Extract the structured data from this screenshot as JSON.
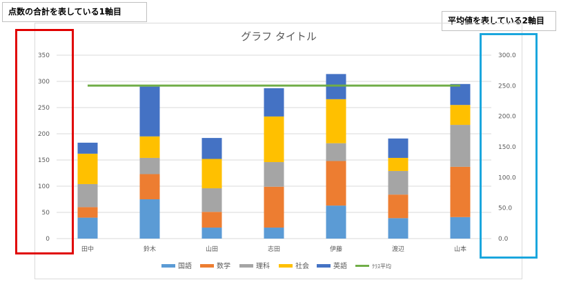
{
  "annotations": {
    "left_note": "点数の合計を表している1軸目",
    "right_note": "平均値を表している2軸目"
  },
  "colors": {
    "国語": "#5b9bd5",
    "数学": "#ed7d31",
    "理科": "#a5a5a5",
    "社会": "#ffc000",
    "英語": "#4472c4",
    "クラス平均": "#70ad47",
    "left_highlight": "#e00000",
    "right_highlight": "#1aa6dd"
  },
  "chart_data": {
    "type": "bar",
    "stacked": true,
    "title": "グラフ タイトル",
    "categories": [
      "田中",
      "鈴木",
      "山田",
      "志田",
      "伊藤",
      "渡辺",
      "山本"
    ],
    "series": [
      {
        "name": "国語",
        "values": [
          40,
          75,
          21,
          21,
          63,
          39,
          41
        ]
      },
      {
        "name": "数学",
        "values": [
          20,
          48,
          30,
          78,
          85,
          45,
          96
        ]
      },
      {
        "name": "理科",
        "values": [
          44,
          31,
          45,
          47,
          34,
          45,
          80
        ]
      },
      {
        "name": "社会",
        "values": [
          58,
          41,
          56,
          87,
          84,
          25,
          38
        ]
      },
      {
        "name": "英語",
        "values": [
          21,
          95,
          40,
          54,
          48,
          37,
          40
        ]
      }
    ],
    "line_series": {
      "name": "クラス平均",
      "axis": "secondary",
      "values": [
        250.3,
        250.3,
        250.3,
        250.3,
        250.3,
        250.3,
        250.3
      ]
    },
    "ylim": [
      0,
      350
    ],
    "yticks": [
      "0",
      "50",
      "100",
      "150",
      "200",
      "250",
      "300",
      "350"
    ],
    "y2lim": [
      0,
      300
    ],
    "y2ticks": [
      "0.0",
      "50.0",
      "100.0",
      "150.0",
      "200.0",
      "250.0",
      "300.0"
    ],
    "legend_labels": [
      "国語",
      "数学",
      "理科",
      "社会",
      "英語",
      "ｸﾗｽ平均"
    ],
    "legend": "bottom",
    "grid": true
  }
}
